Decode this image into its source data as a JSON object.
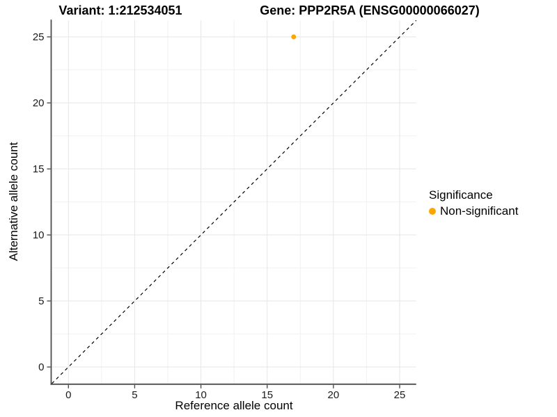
{
  "titles": {
    "variant": "Variant: 1:212534051",
    "gene": "Gene: PPP2R5A (ENSG00000066027)"
  },
  "legend": {
    "title": "Significance",
    "items": [
      {
        "label": "Non-significant",
        "color": "#FFA500"
      }
    ]
  },
  "colors": {
    "point": "#FFA500",
    "grid_major": "#e6e6e6",
    "grid_minor": "#f2f2f2",
    "axis": "#4d4d4d",
    "tick_text": "#1a1a1a",
    "identity_line": "#000000"
  },
  "chart_data": {
    "type": "scatter",
    "title_left": "Variant: 1:212534051",
    "title_right": "Gene: PPP2R5A (ENSG00000066027)",
    "xlabel": "Reference allele count",
    "ylabel": "Alternative allele count",
    "xlim": [
      -1.25,
      26.25
    ],
    "ylim": [
      -1.25,
      26.25
    ],
    "x_ticks": [
      0,
      5,
      10,
      15,
      20,
      25
    ],
    "y_ticks": [
      0,
      5,
      10,
      15,
      20,
      25
    ],
    "x_minor_ticks": [
      2.5,
      7.5,
      12.5,
      17.5,
      22.5
    ],
    "y_minor_ticks": [
      2.5,
      7.5,
      12.5,
      17.5,
      22.5
    ],
    "grid": true,
    "legend_position": "right",
    "series": [
      {
        "name": "Non-significant",
        "color": "#FFA500",
        "points": [
          {
            "x": 17,
            "y": 25
          }
        ]
      }
    ],
    "reference_line": {
      "type": "identity",
      "style": "dashed",
      "color": "#000000"
    }
  }
}
